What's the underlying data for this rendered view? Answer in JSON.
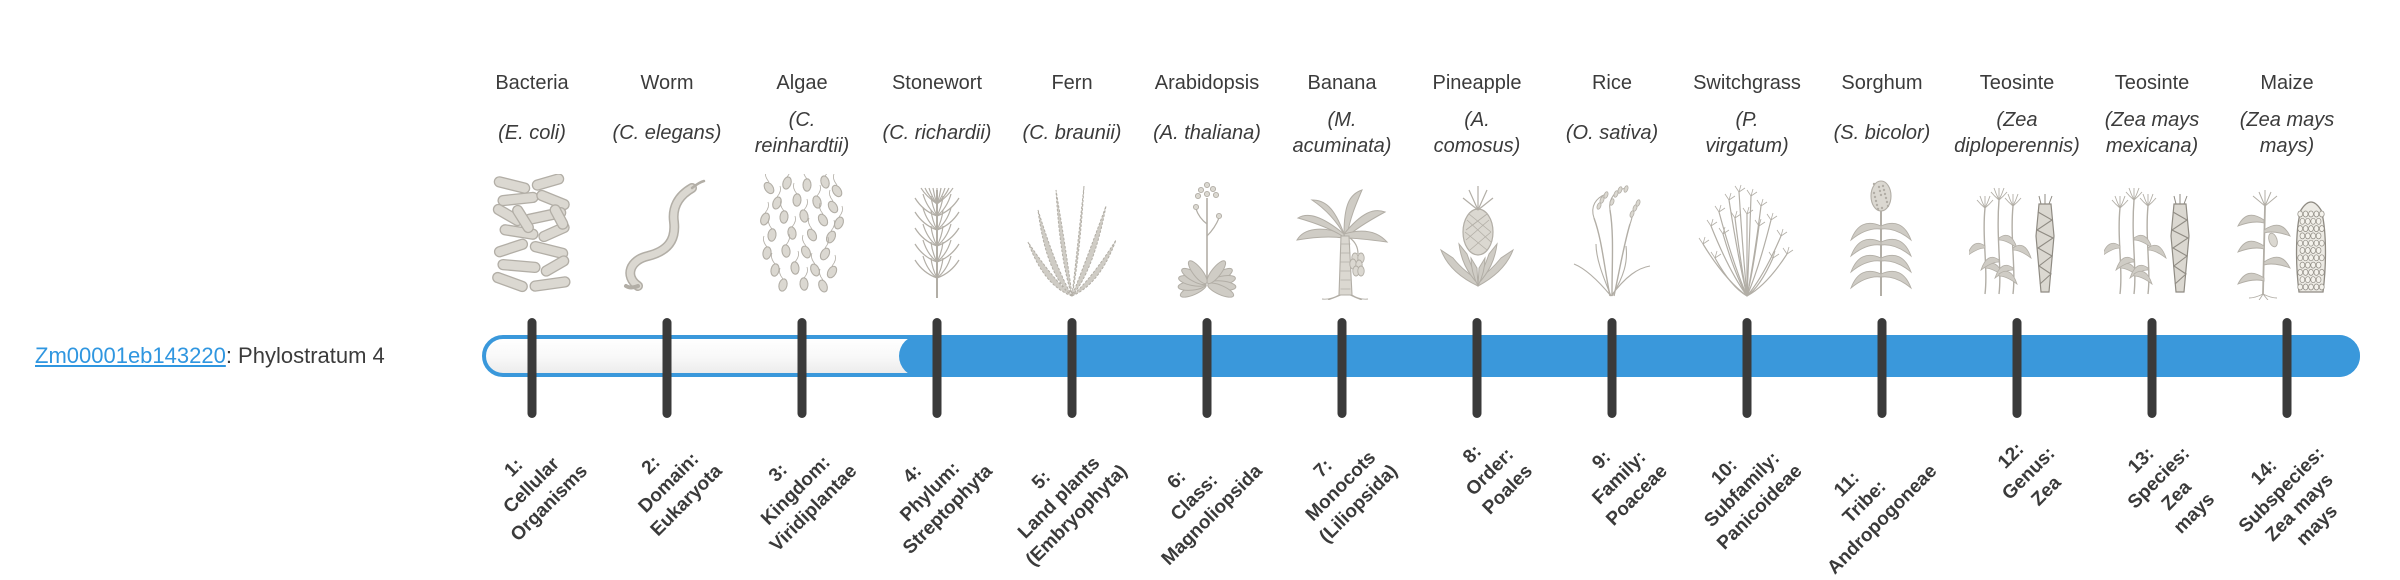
{
  "gene": {
    "id": "Zm00001eb143220",
    "suffix": ": Phylostratum 4",
    "phylostratum": 4
  },
  "colors": {
    "bar_blue": "#3a98db",
    "link_blue": "#2f96e0",
    "tick": "#3a3a3a",
    "text": "#3b3b3b"
  },
  "columns": [
    {
      "common": "Bacteria",
      "sci": "(E. coli)",
      "icon": "bacteria-icon",
      "stratum": "1:\nCellular\nOrganisms"
    },
    {
      "common": "Worm",
      "sci": "(C. elegans)",
      "icon": "worm-icon",
      "stratum": "2:\nDomain:\nEukaryota"
    },
    {
      "common": "Algae",
      "sci": "(C.\nreinhardtii)",
      "icon": "algae-icon",
      "stratum": "3:\nKingdom:\nViridiplantae"
    },
    {
      "common": "Stonewort",
      "sci": "(C. richardii)",
      "icon": "stonewort-icon",
      "stratum": "4:\nPhylum:\nStreptophyta"
    },
    {
      "common": "Fern",
      "sci": "(C. braunii)",
      "icon": "fern-icon",
      "stratum": "5:\nLand plants\n(Embryophyta)"
    },
    {
      "common": "Arabidopsis",
      "sci": "(A. thaliana)",
      "icon": "arabidopsis-icon",
      "stratum": "6:\nClass:\nMagnoliopsida"
    },
    {
      "common": "Banana",
      "sci": "(M.\nacuminata)",
      "icon": "banana-icon",
      "stratum": "7:\nMonocots\n(Liliopsida)"
    },
    {
      "common": "Pineapple",
      "sci": "(A.\ncomosus)",
      "icon": "pineapple-icon",
      "stratum": "8:\nOrder:\nPoales"
    },
    {
      "common": "Rice",
      "sci": "(O. sativa)",
      "icon": "rice-icon",
      "stratum": "9:\nFamily:\nPoaceae"
    },
    {
      "common": "Switchgrass",
      "sci": "(P.\nvirgatum)",
      "icon": "switchgrass-icon",
      "stratum": "10:\nSubfamily:\nPanicoideae"
    },
    {
      "common": "Sorghum",
      "sci": "(S. bicolor)",
      "icon": "sorghum-icon",
      "stratum": "11:\nTribe:\nAndropogoneae"
    },
    {
      "common": "Teosinte",
      "sci": "(Zea\ndiploperennis)",
      "icon": "teosinte-icon",
      "stratum": "12:\nGenus:\nZea"
    },
    {
      "common": "Teosinte",
      "sci": "(Zea mays\nmexicana)",
      "icon": "teosinte-icon",
      "stratum": "13:\nSpecies:\nZea\nmays"
    },
    {
      "common": "Maize",
      "sci": "(Zea mays\nmays)",
      "icon": "maize-icon",
      "stratum": "14:\nSubspecies:\nZea mays\nmays"
    }
  ]
}
